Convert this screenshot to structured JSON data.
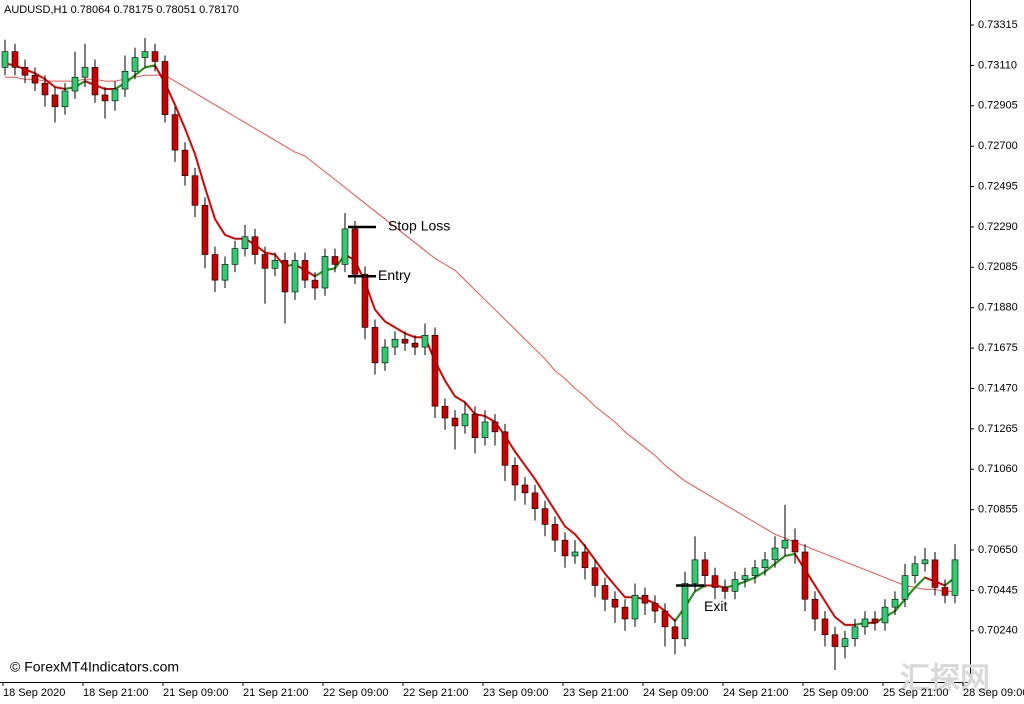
{
  "chart_data": {
    "type": "candlestick",
    "title": "AUDUSD,H1  0.78064 0.78175 0.78051 0.78170",
    "watermark": "© ForexMT4Indicators.com",
    "watermark2": "汇探网",
    "ylim": [
      0.6998,
      0.73442
    ],
    "yticks": [
      0.73315,
      {
        "value": 0.7311,
        "label": "0.73110"
      },
      0.72905,
      {
        "value": 0.727,
        "label": "0.72700"
      },
      0.72495,
      {
        "value": 0.7229,
        "label": "0.72290"
      },
      0.72085,
      {
        "value": 0.7188,
        "label": "0.71880"
      },
      0.71675,
      {
        "value": 0.7147,
        "label": "0.71470"
      },
      0.71265,
      {
        "value": 0.7106,
        "label": "0.71060"
      },
      0.70855,
      {
        "value": 0.7065,
        "label": "0.70650"
      },
      0.70445,
      {
        "value": 0.7024,
        "label": "0.70240"
      }
    ],
    "time_labels": [
      "18 Sep 2020",
      "18 Sep 21:00",
      "21 Sep 09:00",
      "21 Sep 21:00",
      "22 Sep 09:00",
      "22 Sep 21:00",
      "23 Sep 09:00",
      "23 Sep 21:00",
      "24 Sep 09:00",
      "24 Sep 21:00",
      "25 Sep 09:00",
      "25 Sep 21:00",
      "28 Sep 09:00"
    ],
    "up_color": "#2ecc71",
    "down_color": "#cc0000",
    "candles": [
      [
        0.731,
        0.7324,
        0.7306,
        0.7318
      ],
      [
        0.7318,
        0.7322,
        0.7306,
        0.731
      ],
      [
        0.731,
        0.7314,
        0.7302,
        0.7306
      ],
      [
        0.7306,
        0.731,
        0.7298,
        0.7302
      ],
      [
        0.7302,
        0.7306,
        0.729,
        0.7296
      ],
      [
        0.7296,
        0.73,
        0.7282,
        0.729
      ],
      [
        0.729,
        0.7302,
        0.7286,
        0.7298
      ],
      [
        0.7298,
        0.7318,
        0.7294,
        0.7305
      ],
      [
        0.7305,
        0.7322,
        0.73,
        0.731
      ],
      [
        0.731,
        0.7314,
        0.7292,
        0.7296
      ],
      [
        0.7296,
        0.73,
        0.7284,
        0.7293
      ],
      [
        0.7293,
        0.7303,
        0.7288,
        0.7299
      ],
      [
        0.7299,
        0.7316,
        0.7295,
        0.7308
      ],
      [
        0.7308,
        0.732,
        0.7304,
        0.7315
      ],
      [
        0.7315,
        0.7325,
        0.731,
        0.7318
      ],
      [
        0.7318,
        0.7322,
        0.7308,
        0.7313
      ],
      [
        0.7313,
        0.7316,
        0.7282,
        0.7286
      ],
      [
        0.7286,
        0.729,
        0.7262,
        0.7268
      ],
      [
        0.7268,
        0.7272,
        0.725,
        0.7255
      ],
      [
        0.7255,
        0.7259,
        0.7234,
        0.724
      ],
      [
        0.724,
        0.7244,
        0.7208,
        0.7215
      ],
      [
        0.7215,
        0.7219,
        0.7196,
        0.7202
      ],
      [
        0.7202,
        0.7214,
        0.7198,
        0.721
      ],
      [
        0.721,
        0.7222,
        0.7206,
        0.7218
      ],
      [
        0.7218,
        0.723,
        0.7214,
        0.7224
      ],
      [
        0.7224,
        0.7228,
        0.721,
        0.7215
      ],
      [
        0.7215,
        0.7219,
        0.719,
        0.7208
      ],
      [
        0.7208,
        0.7216,
        0.7204,
        0.7212
      ],
      [
        0.7212,
        0.7216,
        0.718,
        0.7196
      ],
      [
        0.7196,
        0.7216,
        0.7192,
        0.7212
      ],
      [
        0.7212,
        0.7216,
        0.7198,
        0.7202
      ],
      [
        0.7202,
        0.7206,
        0.7192,
        0.7198
      ],
      [
        0.7198,
        0.7218,
        0.7194,
        0.7214
      ],
      [
        0.7214,
        0.7218,
        0.7206,
        0.721
      ],
      [
        0.721,
        0.7236,
        0.7206,
        0.7228
      ],
      [
        0.7228,
        0.7232,
        0.72,
        0.7205
      ],
      [
        0.7205,
        0.7209,
        0.7172,
        0.7178
      ],
      [
        0.7178,
        0.7182,
        0.7154,
        0.716
      ],
      [
        0.716,
        0.7172,
        0.7156,
        0.7168
      ],
      [
        0.7168,
        0.7176,
        0.7164,
        0.7172
      ],
      [
        0.7172,
        0.7176,
        0.7166,
        0.717
      ],
      [
        0.717,
        0.7174,
        0.7164,
        0.7168
      ],
      [
        0.7168,
        0.718,
        0.7164,
        0.7174
      ],
      [
        0.7174,
        0.7178,
        0.7132,
        0.7138
      ],
      [
        0.7138,
        0.7142,
        0.7126,
        0.7132
      ],
      [
        0.7132,
        0.7136,
        0.7116,
        0.7128
      ],
      [
        0.7128,
        0.714,
        0.7124,
        0.7134
      ],
      [
        0.7134,
        0.7138,
        0.7114,
        0.7122
      ],
      [
        0.7122,
        0.7136,
        0.7118,
        0.713
      ],
      [
        0.713,
        0.7134,
        0.7118,
        0.7125
      ],
      [
        0.7125,
        0.7129,
        0.71,
        0.7108
      ],
      [
        0.7108,
        0.7112,
        0.709,
        0.7098
      ],
      [
        0.7098,
        0.7102,
        0.7088,
        0.7094
      ],
      [
        0.7094,
        0.7098,
        0.708,
        0.7086
      ],
      [
        0.7086,
        0.709,
        0.7072,
        0.7078
      ],
      [
        0.7078,
        0.7082,
        0.7064,
        0.707
      ],
      [
        0.707,
        0.7074,
        0.7056,
        0.7062
      ],
      [
        0.7062,
        0.707,
        0.7058,
        0.7064
      ],
      [
        0.7064,
        0.7068,
        0.705,
        0.7056
      ],
      [
        0.7056,
        0.706,
        0.7041,
        0.7047
      ],
      [
        0.7047,
        0.7051,
        0.7034,
        0.704
      ],
      [
        0.704,
        0.7044,
        0.7028,
        0.7036
      ],
      [
        0.7036,
        0.704,
        0.7024,
        0.703
      ],
      [
        0.703,
        0.7048,
        0.7026,
        0.7042
      ],
      [
        0.7042,
        0.7046,
        0.7032,
        0.7038
      ],
      [
        0.7038,
        0.7042,
        0.7028,
        0.7034
      ],
      [
        0.7034,
        0.7038,
        0.7016,
        0.7026
      ],
      [
        0.7026,
        0.703,
        0.7012,
        0.702
      ],
      [
        0.702,
        0.7054,
        0.7016,
        0.7048
      ],
      [
        0.7048,
        0.7072,
        0.7044,
        0.706
      ],
      [
        0.706,
        0.7064,
        0.7046,
        0.7052
      ],
      [
        0.7052,
        0.7056,
        0.704,
        0.7046
      ],
      [
        0.7046,
        0.705,
        0.704,
        0.7044
      ],
      [
        0.7044,
        0.7054,
        0.704,
        0.705
      ],
      [
        0.705,
        0.7056,
        0.7046,
        0.7052
      ],
      [
        0.7052,
        0.706,
        0.7048,
        0.7056
      ],
      [
        0.7056,
        0.7064,
        0.7052,
        0.706
      ],
      [
        0.706,
        0.7072,
        0.7056,
        0.7066
      ],
      [
        0.7066,
        0.7088,
        0.7062,
        0.707
      ],
      [
        0.707,
        0.7076,
        0.7058,
        0.7064
      ],
      [
        0.7064,
        0.7068,
        0.7034,
        0.704
      ],
      [
        0.704,
        0.7044,
        0.7024,
        0.703
      ],
      [
        0.703,
        0.7034,
        0.7016,
        0.7022
      ],
      [
        0.7022,
        0.7026,
        0.7004,
        0.7016
      ],
      [
        0.7016,
        0.7024,
        0.701,
        0.702
      ],
      [
        0.702,
        0.703,
        0.7016,
        0.7026
      ],
      [
        0.7026,
        0.7034,
        0.7022,
        0.703
      ],
      [
        0.703,
        0.7034,
        0.7024,
        0.7028
      ],
      [
        0.7028,
        0.704,
        0.7024,
        0.7036
      ],
      [
        0.7036,
        0.7044,
        0.7032,
        0.704
      ],
      [
        0.704,
        0.7058,
        0.7036,
        0.7052
      ],
      [
        0.7052,
        0.7062,
        0.7048,
        0.7058
      ],
      [
        0.7058,
        0.7066,
        0.7054,
        0.706
      ],
      [
        0.706,
        0.7064,
        0.7042,
        0.7046
      ],
      [
        0.7046,
        0.705,
        0.7038,
        0.7042
      ],
      [
        0.7042,
        0.7068,
        0.7038,
        0.706
      ]
    ],
    "series": [
      {
        "color": "#e00000",
        "rising_color": "#1a9a1a",
        "width": 2,
        "values": [
          0.7312,
          0.7311,
          0.7309,
          0.7307,
          0.7304,
          0.73,
          0.7299,
          0.73,
          0.7303,
          0.7301,
          0.7299,
          0.7299,
          0.7302,
          0.7306,
          0.731,
          0.7311,
          0.7302,
          0.7291,
          0.7279,
          0.7266,
          0.7249,
          0.7233,
          0.7225,
          0.7223,
          0.7223,
          0.722,
          0.7216,
          0.7215,
          0.7209,
          0.721,
          0.7207,
          0.7204,
          0.7207,
          0.7208,
          0.7215,
          0.7212,
          0.7201,
          0.7187,
          0.7181,
          0.7178,
          0.7175,
          0.7173,
          0.7173,
          0.7161,
          0.7151,
          0.7143,
          0.714,
          0.7134,
          0.7133,
          0.713,
          0.7123,
          0.7115,
          0.7108,
          0.7101,
          0.7093,
          0.7085,
          0.7077,
          0.7073,
          0.7067,
          0.706,
          0.7053,
          0.7047,
          0.7041,
          0.7041,
          0.704,
          0.7038,
          0.7034,
          0.7029,
          0.7036,
          0.7044,
          0.7047,
          0.7047,
          0.7046,
          0.7047,
          0.7049,
          0.7051,
          0.7054,
          0.7058,
          0.7062,
          0.7063,
          0.7055,
          0.7047,
          0.7039,
          0.7031,
          0.7027,
          0.7027,
          0.7028,
          0.7028,
          0.7031,
          0.7034,
          0.704,
          0.7046,
          0.7051,
          0.7049,
          0.7047,
          0.7051
        ]
      },
      {
        "color": "#ff4a4a",
        "width": 1,
        "values": [
          0.7305,
          0.7305,
          0.7304,
          0.7304,
          0.7303,
          0.7303,
          0.7303,
          0.7303,
          0.7304,
          0.7304,
          0.7303,
          0.7303,
          0.7304,
          0.7305,
          0.7306,
          0.7306,
          0.7306,
          0.7303,
          0.73,
          0.7297,
          0.7294,
          0.7291,
          0.7288,
          0.7285,
          0.7282,
          0.7279,
          0.7276,
          0.7273,
          0.727,
          0.7267,
          0.7265,
          0.7261,
          0.7257,
          0.7253,
          0.7249,
          0.7245,
          0.7241,
          0.7237,
          0.7233,
          0.7229,
          0.7225,
          0.7221,
          0.7217,
          0.7213,
          0.721,
          0.7207,
          0.7202,
          0.7197,
          0.7192,
          0.7187,
          0.7182,
          0.7177,
          0.7172,
          0.7167,
          0.7162,
          0.7156,
          0.7152,
          0.7147,
          0.7143,
          0.7138,
          0.7134,
          0.713,
          0.7125,
          0.7121,
          0.7117,
          0.7113,
          0.7108,
          0.7104,
          0.71,
          0.7097,
          0.7094,
          0.7091,
          0.7088,
          0.7085,
          0.7082,
          0.7079,
          0.7076,
          0.7073,
          0.7071,
          0.7069,
          0.7067,
          0.7065,
          0.7063,
          0.7061,
          0.7059,
          0.7057,
          0.7055,
          0.7053,
          0.7051,
          0.7049,
          0.7047,
          0.7046,
          0.7045,
          0.7045,
          0.7044,
          0.7044
        ]
      }
    ],
    "levels": [
      {
        "label": "Stop Loss",
        "value": 0.7229
      },
      {
        "label": "Entry",
        "value": 0.7204
      },
      {
        "label": "Exit",
        "value": 0.7047
      }
    ]
  }
}
